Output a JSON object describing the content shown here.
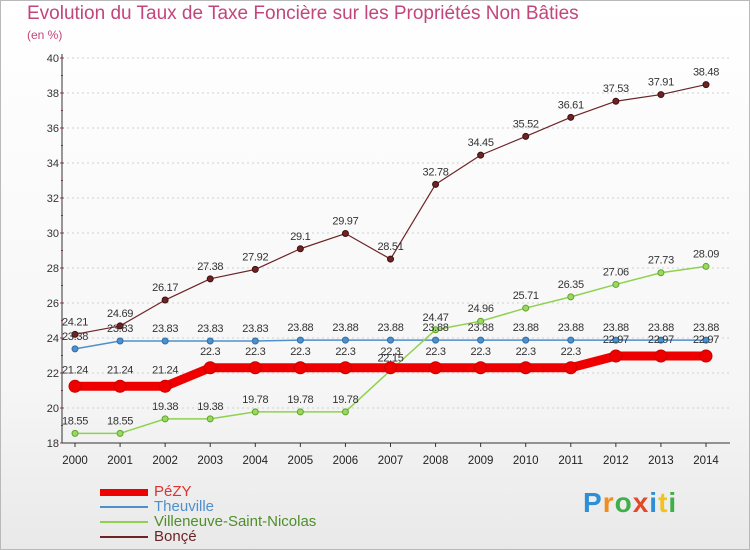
{
  "title": "Evolution du Taux de Taxe Foncière sur les Propriétés Non Bâties",
  "unit": "(en %)",
  "logo": {
    "text": "Proxiti",
    "colors": [
      "#2f8fd6",
      "#f28c1e",
      "#3db04a",
      "#e24a2a",
      "#2f8fd6",
      "#f2c21e",
      "#3db04a"
    ]
  },
  "chart_data": {
    "type": "line",
    "x": [
      "2000",
      "2001",
      "2002",
      "2003",
      "2004",
      "2005",
      "2006",
      "2007",
      "2008",
      "2009",
      "2010",
      "2011",
      "2012",
      "2013",
      "2014"
    ],
    "ylim": [
      18,
      40
    ],
    "yticks": [
      "18",
      "20",
      "22",
      "24",
      "26",
      "28",
      "30",
      "32",
      "34",
      "36",
      "38",
      "40"
    ],
    "grid": "horizontal-dashed",
    "legend": "bottom-left",
    "series": [
      {
        "name": "Bonçé",
        "color": "#6e2424",
        "values": [
          24.21,
          24.69,
          26.17,
          27.38,
          27.92,
          29.1,
          29.97,
          28.51,
          32.78,
          34.45,
          35.52,
          36.61,
          37.53,
          37.91,
          38.48
        ],
        "labels": [
          "24.21",
          "24.69",
          "26.17",
          "27.38",
          "27.92",
          "29.1",
          "29.97",
          "28.51",
          "32.78",
          "34.45",
          "35.52",
          "36.61",
          "37.53",
          "37.91",
          "38.48"
        ]
      },
      {
        "name": "Theuville",
        "color": "#4f90cc",
        "values": [
          23.38,
          23.83,
          23.83,
          23.83,
          23.83,
          23.88,
          23.88,
          23.88,
          23.88,
          23.88,
          23.88,
          23.88,
          23.88,
          23.88,
          23.88
        ],
        "labels": [
          "23.38",
          "23.83",
          "23.83",
          "23.83",
          "23.83",
          "23.88",
          "23.88",
          "23.88",
          "23.88",
          "23.88",
          "23.88",
          "23.88",
          "23.88",
          "23.88",
          "23.88"
        ]
      },
      {
        "name": "Villeneuve-Saint-Nicolas",
        "color": "#8fd14f",
        "values": [
          18.55,
          18.55,
          19.38,
          19.38,
          19.78,
          19.78,
          19.78,
          22.15,
          24.47,
          24.96,
          25.71,
          26.35,
          27.06,
          27.73,
          28.09
        ],
        "labels": [
          "18.55",
          "18.55",
          "19.38",
          "19.38",
          "19.78",
          "19.78",
          "19.78",
          "22.15",
          "24.47",
          "24.96",
          "25.71",
          "26.35",
          "27.06",
          "27.73",
          "28.09"
        ]
      },
      {
        "name": "PéZY",
        "color": "#ee0000",
        "values": [
          21.24,
          21.24,
          21.24,
          22.3,
          22.3,
          22.3,
          22.3,
          22.3,
          22.3,
          22.3,
          22.3,
          22.3,
          22.97,
          22.97,
          22.97
        ],
        "labels": [
          "21.24",
          "21.24",
          "21.24",
          "22.3",
          "22.3",
          "22.3",
          "22.3",
          "22.3",
          "22.3",
          "22.3",
          "22.3",
          "22.3",
          "22.97",
          "22.97",
          "22.97"
        ]
      }
    ]
  },
  "legend_order": [
    "PéZY",
    "Theuville",
    "Villeneuve-Saint-Nicolas",
    "Bonçé"
  ]
}
